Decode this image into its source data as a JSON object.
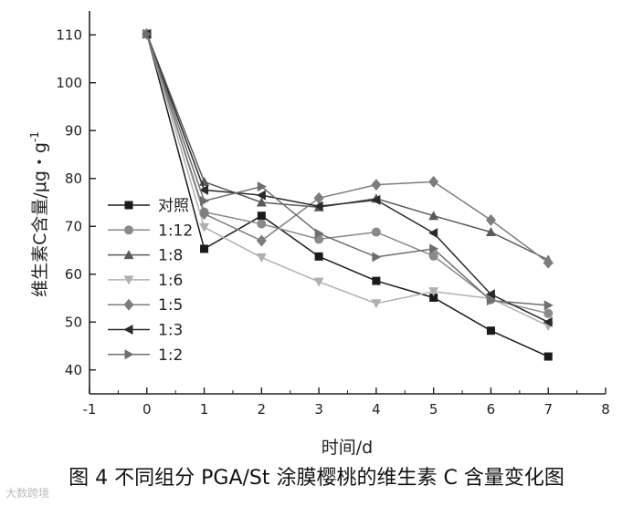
{
  "chart_data": {
    "type": "line",
    "xlabel": "时间/d",
    "ylabel": "维生素C含量/μg・g",
    "ylabel_sup": "-1",
    "xlim": [
      -1,
      8
    ],
    "ylim": [
      35,
      115
    ],
    "xticks": [
      -1,
      0,
      1,
      2,
      3,
      4,
      5,
      6,
      7,
      8
    ],
    "yticks": [
      40,
      50,
      60,
      70,
      80,
      90,
      100,
      110
    ],
    "grid": false,
    "legend_position": "left",
    "x": [
      0,
      1,
      2,
      3,
      4,
      5,
      6,
      7
    ],
    "series": [
      {
        "name": "对照",
        "marker": "square",
        "color": "#1a1a1a",
        "values": [
          110.2,
          65.3,
          72.2,
          63.7,
          58.6,
          55.1,
          48.2,
          42.8
        ]
      },
      {
        "name": "1:12",
        "marker": "circle",
        "color": "#8a8a8a",
        "values": [
          110.2,
          73.0,
          70.5,
          67.3,
          68.8,
          63.8,
          54.7,
          51.8
        ]
      },
      {
        "name": "1:8",
        "marker": "triangle-up",
        "color": "#5a5a5a",
        "values": [
          110.2,
          79.3,
          75.0,
          74.0,
          75.8,
          72.2,
          68.8,
          63.0
        ]
      },
      {
        "name": "1:6",
        "marker": "triangle-down",
        "color": "#b0b0b0",
        "values": [
          110.2,
          69.8,
          63.5,
          58.4,
          53.9,
          56.4,
          54.9,
          49.2
        ]
      },
      {
        "name": "1:5",
        "marker": "diamond",
        "color": "#7d7d7d",
        "values": [
          110.2,
          72.6,
          67.0,
          75.9,
          78.7,
          79.3,
          71.3,
          62.4
        ]
      },
      {
        "name": "1:3",
        "marker": "triangle-left",
        "color": "#2a2a2a",
        "values": [
          110.2,
          77.6,
          76.5,
          74.2,
          75.5,
          68.6,
          55.8,
          50.0
        ]
      },
      {
        "name": "1:2",
        "marker": "triangle-right",
        "color": "#6e6e6e",
        "values": [
          110.2,
          75.3,
          78.3,
          68.5,
          63.6,
          65.3,
          54.5,
          53.5
        ]
      }
    ]
  },
  "caption": "图 4   不同组分 PGA/St 涂膜樱桃的维生素 C 含量变化图",
  "watermark": "大数跨境"
}
